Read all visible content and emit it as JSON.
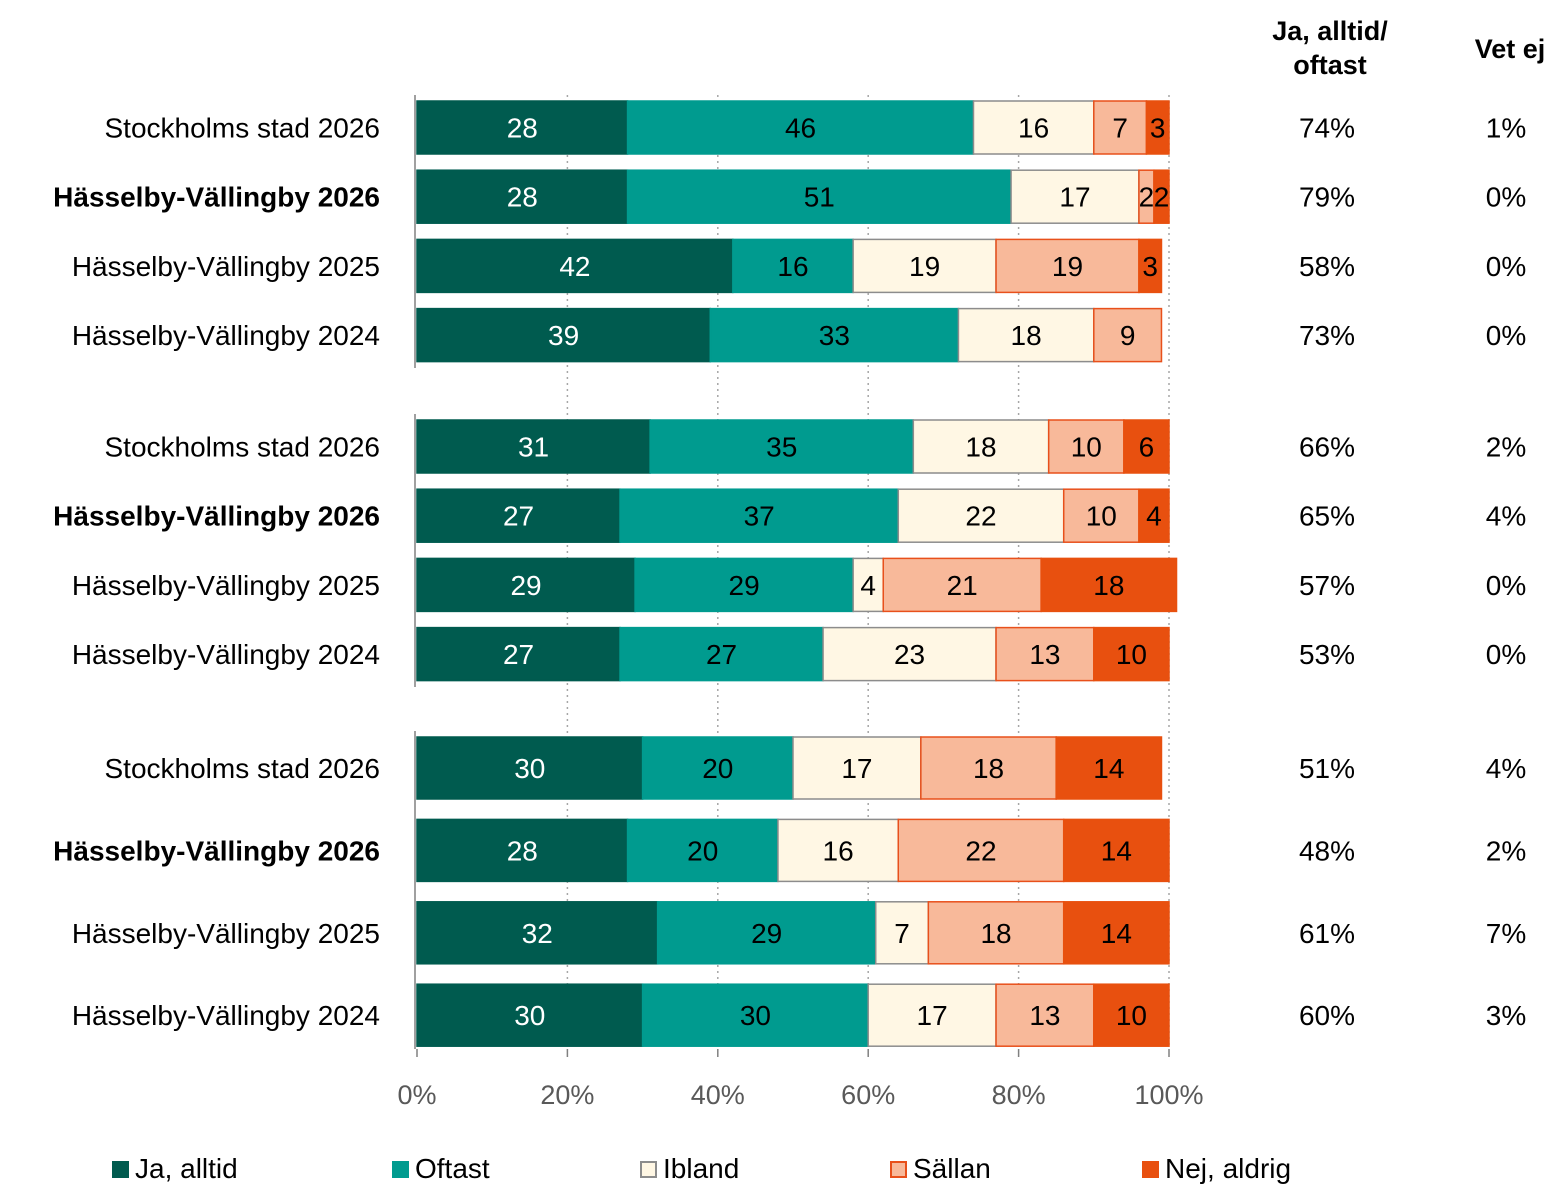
{
  "header": {
    "pct_col_line1": "Ja, alltid/",
    "pct_col_line2": "oftast",
    "vet_ej_col": "Vet ej"
  },
  "legend": [
    {
      "label": "Ja, alltid",
      "color": "#005b4f",
      "border": "#005b4f"
    },
    {
      "label": "Oftast",
      "color": "#009b8f",
      "border": "#009b8f"
    },
    {
      "label": "Ibland",
      "color": "#fff7e4",
      "border": "#8c8c8c"
    },
    {
      "label": "Sällan",
      "color": "#f8b99a",
      "border": "#e8501b"
    },
    {
      "label": "Nej, aldrig",
      "color": "#e8500f",
      "border": "#e8500f"
    }
  ],
  "chart_data": {
    "type": "bar",
    "orientation": "horizontal",
    "stacked": true,
    "xlim": [
      0,
      100
    ],
    "x_ticks": [
      "0%",
      "20%",
      "40%",
      "60%",
      "80%",
      "100%"
    ],
    "grid": "vertical dotted",
    "legend_position": "bottom",
    "series_names": [
      "Ja, alltid",
      "Oftast",
      "Ibland",
      "Sällan",
      "Nej, aldrig"
    ],
    "groups": [
      {
        "rows": [
          {
            "label": "Stockholms stad 2026",
            "bold": false,
            "values": [
              28,
              46,
              16,
              7,
              3
            ],
            "pct": "74%",
            "vet_ej": "1%"
          },
          {
            "label": "Hässelby-Vällingby 2026",
            "bold": true,
            "values": [
              28,
              51,
              17,
              2,
              2
            ],
            "pct": "79%",
            "vet_ej": "0%"
          },
          {
            "label": "Hässelby-Vällingby 2025",
            "bold": false,
            "values": [
              42,
              16,
              19,
              19,
              3
            ],
            "pct": "58%",
            "vet_ej": "0%"
          },
          {
            "label": "Hässelby-Vällingby 2024",
            "bold": false,
            "values": [
              39,
              33,
              18,
              9,
              0
            ],
            "pct": "73%",
            "vet_ej": "0%"
          }
        ]
      },
      {
        "rows": [
          {
            "label": "Stockholms stad 2026",
            "bold": false,
            "values": [
              31,
              35,
              18,
              10,
              6
            ],
            "pct": "66%",
            "vet_ej": "2%"
          },
          {
            "label": "Hässelby-Vällingby 2026",
            "bold": true,
            "values": [
              27,
              37,
              22,
              10,
              4
            ],
            "pct": "65%",
            "vet_ej": "4%"
          },
          {
            "label": "Hässelby-Vällingby 2025",
            "bold": false,
            "values": [
              29,
              29,
              4,
              21,
              18
            ],
            "pct": "57%",
            "vet_ej": "0%"
          },
          {
            "label": "Hässelby-Vällingby 2024",
            "bold": false,
            "values": [
              27,
              27,
              23,
              13,
              10
            ],
            "pct": "53%",
            "vet_ej": "0%"
          }
        ]
      },
      {
        "rows": [
          {
            "label": "Stockholms stad 2026",
            "bold": false,
            "values": [
              30,
              20,
              17,
              18,
              14
            ],
            "pct": "51%",
            "vet_ej": "4%"
          },
          {
            "label": "Hässelby-Vällingby 2026",
            "bold": true,
            "values": [
              28,
              20,
              16,
              22,
              14
            ],
            "pct": "48%",
            "vet_ej": "2%"
          },
          {
            "label": "Hässelby-Vällingby 2025",
            "bold": false,
            "values": [
              32,
              29,
              7,
              18,
              14
            ],
            "pct": "61%",
            "vet_ej": "7%"
          },
          {
            "label": "Hässelby-Vällingby 2024",
            "bold": false,
            "values": [
              30,
              30,
              17,
              13,
              10
            ],
            "pct": "60%",
            "vet_ej": "3%"
          }
        ]
      }
    ]
  }
}
